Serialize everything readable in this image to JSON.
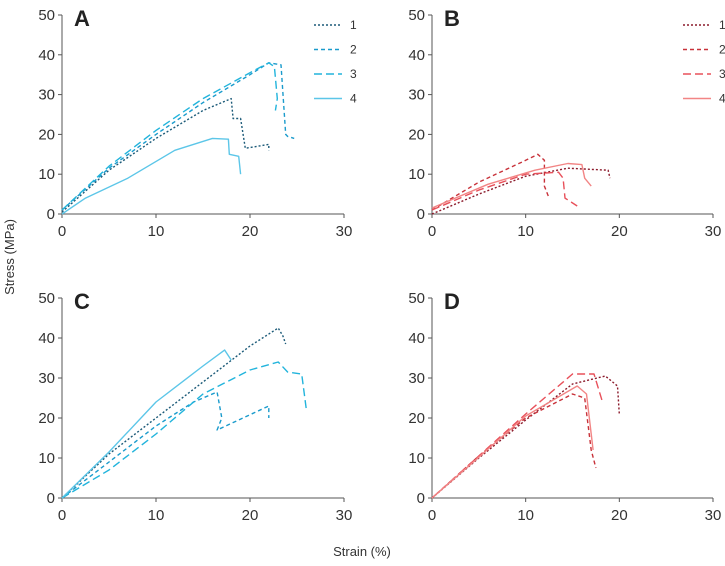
{
  "chart_data": [
    {
      "type": "line",
      "title": "A",
      "xlim": [
        0,
        30
      ],
      "ylim": [
        0,
        50
      ],
      "xticks": [
        0,
        10,
        20,
        30
      ],
      "yticks": [
        0,
        10,
        20,
        30,
        40,
        50
      ],
      "legend": "top-right",
      "series": [
        {
          "name": "1",
          "color": "#1b5a78",
          "dash": "2,2",
          "points": [
            [
              0,
              0.5
            ],
            [
              5,
              11
            ],
            [
              10,
              19
            ],
            [
              15,
              26
            ],
            [
              18,
              29
            ],
            [
              18.2,
              24
            ],
            [
              19,
              24
            ],
            [
              19.5,
              16.5
            ],
            [
              22,
              17.5
            ],
            [
              22,
              16
            ]
          ]
        },
        {
          "name": "2",
          "color": "#1a9bcc",
          "dash": "4,3",
          "points": [
            [
              0,
              1
            ],
            [
              5,
              11.5
            ],
            [
              10,
              20
            ],
            [
              15,
              28
            ],
            [
              20,
              35
            ],
            [
              22,
              38
            ],
            [
              23.3,
              37.5
            ],
            [
              23.8,
              20
            ],
            [
              24,
              19.5
            ],
            [
              24.7,
              19
            ]
          ]
        },
        {
          "name": "3",
          "color": "#22b4dc",
          "dash": "8,4",
          "points": [
            [
              0,
              1
            ],
            [
              5,
              12
            ],
            [
              10,
              21
            ],
            [
              15,
              29
            ],
            [
              20,
              35.5
            ],
            [
              22,
              38
            ],
            [
              22.6,
              37
            ],
            [
              22.9,
              29
            ],
            [
              22.7,
              26
            ]
          ]
        },
        {
          "name": "4",
          "color": "#5cc6e8",
          "dash": "",
          "points": [
            [
              0,
              0
            ],
            [
              2.5,
              4
            ],
            [
              7,
              9
            ],
            [
              12,
              16
            ],
            [
              16,
              19
            ],
            [
              17.7,
              18.8
            ],
            [
              17.8,
              15
            ],
            [
              18.8,
              14.5
            ],
            [
              19,
              10
            ]
          ]
        }
      ]
    },
    {
      "type": "line",
      "title": "B",
      "xlim": [
        0,
        30
      ],
      "ylim": [
        0,
        50
      ],
      "xticks": [
        0,
        10,
        20,
        30
      ],
      "yticks": [
        0,
        10,
        20,
        30,
        40,
        50
      ],
      "legend": "top-right",
      "series": [
        {
          "name": "1",
          "color": "#8b1a2b",
          "dash": "2,2",
          "points": [
            [
              0,
              0
            ],
            [
              5,
              5
            ],
            [
              10,
              9.5
            ],
            [
              14.5,
              11.5
            ],
            [
              18.8,
              11
            ],
            [
              19,
              9
            ]
          ]
        },
        {
          "name": "2",
          "color": "#c8323a",
          "dash": "4,3",
          "points": [
            [
              0,
              1
            ],
            [
              5,
              8
            ],
            [
              10,
              13.5
            ],
            [
              11.3,
              15
            ],
            [
              12,
              13.5
            ],
            [
              12,
              7
            ],
            [
              12.5,
              4
            ]
          ]
        },
        {
          "name": "3",
          "color": "#e8505a",
          "dash": "8,4",
          "points": [
            [
              0,
              1
            ],
            [
              5,
              6
            ],
            [
              10,
              10
            ],
            [
              13.5,
              10.5
            ],
            [
              14,
              9
            ],
            [
              14.2,
              4
            ],
            [
              15.5,
              2
            ]
          ]
        },
        {
          "name": "4",
          "color": "#f28585",
          "dash": "",
          "points": [
            [
              0,
              1.5
            ],
            [
              6,
              7.5
            ],
            [
              11,
              11
            ],
            [
              14.5,
              12.7
            ],
            [
              16,
              12.4
            ],
            [
              16.3,
              9
            ],
            [
              17,
              7
            ]
          ]
        }
      ]
    },
    {
      "type": "line",
      "title": "C",
      "xlim": [
        0,
        30
      ],
      "ylim": [
        0,
        50
      ],
      "xticks": [
        0,
        10,
        20,
        30
      ],
      "yticks": [
        0,
        10,
        20,
        30,
        40,
        50
      ],
      "legend": "none",
      "series": [
        {
          "name": "1",
          "color": "#1b5a78",
          "dash": "2,2",
          "points": [
            [
              0,
              0
            ],
            [
              5,
              11
            ],
            [
              10,
              20
            ],
            [
              15,
              29
            ],
            [
              20,
              38
            ],
            [
              23,
              42.5
            ],
            [
              23.5,
              40.5
            ],
            [
              23.8,
              38.5
            ]
          ]
        },
        {
          "name": "2",
          "color": "#1a9bcc",
          "dash": "4,3",
          "points": [
            [
              0,
              0
            ],
            [
              5,
              9
            ],
            [
              10,
              18
            ],
            [
              14,
              24
            ],
            [
              16.5,
              26.5
            ],
            [
              17,
              20
            ],
            [
              16.5,
              17
            ],
            [
              22,
              23
            ],
            [
              22,
              20
            ]
          ]
        },
        {
          "name": "3",
          "color": "#22b4dc",
          "dash": "8,4",
          "points": [
            [
              0,
              0
            ],
            [
              5,
              7
            ],
            [
              10,
              16
            ],
            [
              15,
              26
            ],
            [
              20,
              32
            ],
            [
              23,
              34
            ],
            [
              24,
              31.5
            ],
            [
              25.5,
              31
            ],
            [
              26,
              22
            ]
          ]
        },
        {
          "name": "4",
          "color": "#5cc6e8",
          "dash": "",
          "points": [
            [
              0,
              0
            ],
            [
              5,
              11.5
            ],
            [
              10,
              24
            ],
            [
              15,
              33
            ],
            [
              17.3,
              37
            ],
            [
              18,
              34.5
            ]
          ]
        }
      ]
    },
    {
      "type": "line",
      "title": "D",
      "xlim": [
        0,
        30
      ],
      "ylim": [
        0,
        50
      ],
      "xticks": [
        0,
        10,
        20,
        30
      ],
      "yticks": [
        0,
        10,
        20,
        30,
        40,
        50
      ],
      "legend": "none",
      "series": [
        {
          "name": "1",
          "color": "#8b1a2b",
          "dash": "2,2",
          "points": [
            [
              0,
              0
            ],
            [
              5,
              10
            ],
            [
              10,
              19.5
            ],
            [
              15,
              28.5
            ],
            [
              18.5,
              30.5
            ],
            [
              19.8,
              28
            ],
            [
              20,
              21
            ]
          ]
        },
        {
          "name": "2",
          "color": "#c8323a",
          "dash": "4,3",
          "points": [
            [
              0,
              0
            ],
            [
              5,
              10.5
            ],
            [
              10,
              20
            ],
            [
              15,
              26
            ],
            [
              16.3,
              25
            ],
            [
              17,
              12
            ],
            [
              17.5,
              7.5
            ]
          ]
        },
        {
          "name": "3",
          "color": "#e8505a",
          "dash": "8,4",
          "points": [
            [
              0,
              0
            ],
            [
              5,
              10.5
            ],
            [
              10,
              21
            ],
            [
              15,
              31
            ],
            [
              17.3,
              31
            ],
            [
              18.2,
              24
            ]
          ]
        },
        {
          "name": "4",
          "color": "#f28585",
          "dash": "",
          "points": [
            [
              0,
              0
            ],
            [
              5,
              10.2
            ],
            [
              10,
              20.5
            ],
            [
              15.5,
              28
            ],
            [
              16.5,
              26
            ],
            [
              17.2,
              12
            ]
          ]
        }
      ]
    }
  ],
  "axes": {
    "ylabel": "Stress (MPa)",
    "xlabel": "Strain (%)"
  }
}
